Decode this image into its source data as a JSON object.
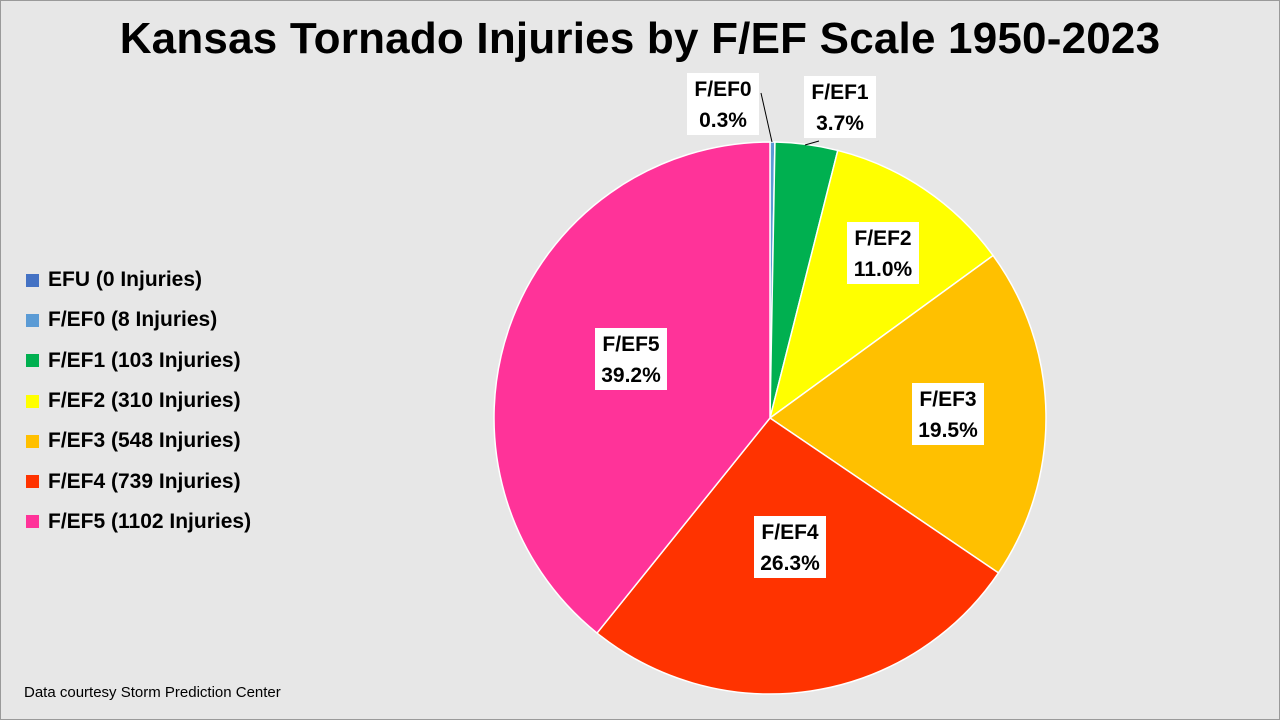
{
  "title": "Kansas Tornado Injuries by F/EF Scale 1950-2023",
  "footnote": "Data courtesy Storm Prediction Center",
  "chart_data": {
    "type": "pie",
    "title": "Kansas Tornado Injuries by F/EF Scale 1950-2023",
    "legend_position": "left",
    "slices": [
      {
        "category": "EFU",
        "legend": "EFU (0 Injuries)",
        "value": 0,
        "percent_label": "",
        "color": "#4472c4"
      },
      {
        "category": "F/EF0",
        "legend": "F/EF0 (8 Injuries)",
        "value": 8,
        "percent_label": "0.3%",
        "color": "#5b9bd5"
      },
      {
        "category": "F/EF1",
        "legend": "F/EF1 (103 Injuries)",
        "value": 103,
        "percent_label": "3.7%",
        "color": "#00b050"
      },
      {
        "category": "F/EF2",
        "legend": "F/EF2 (310 Injuries)",
        "value": 310,
        "percent_label": "11.0%",
        "color": "#ffff00"
      },
      {
        "category": "F/EF3",
        "legend": "F/EF3 (548 Injuries)",
        "value": 548,
        "percent_label": "19.5%",
        "color": "#ffc000"
      },
      {
        "category": "F/EF4",
        "legend": "F/EF4 (739 Injuries)",
        "value": 739,
        "percent_label": "26.3%",
        "color": "#ff3300"
      },
      {
        "category": "F/EF5",
        "legend": "F/EF5 (1102 Injuries)",
        "value": 1102,
        "percent_label": "39.2%",
        "color": "#ff3399"
      }
    ]
  }
}
